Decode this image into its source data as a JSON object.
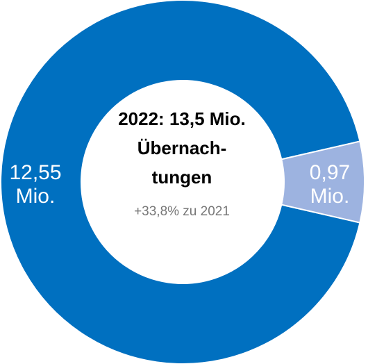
{
  "chart_data": {
    "type": "donut",
    "title": "2022: 13,5 Mio. Übernach­tungen",
    "subtitle": "+33,8% zu 2021",
    "categories": [
      null,
      null
    ],
    "values": [
      12.55,
      0.97
    ],
    "value_labels": [
      "12,55 Mio.",
      "0,97 Mio."
    ],
    "colors": [
      "#0070c0",
      "#9db3e0"
    ]
  }
}
